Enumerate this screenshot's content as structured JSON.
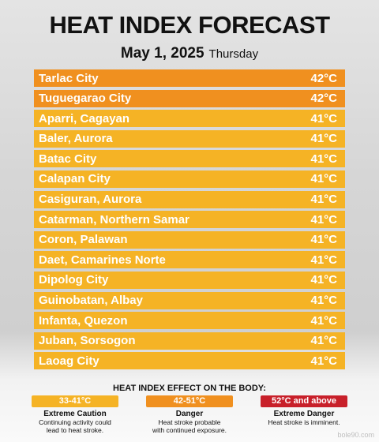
{
  "header": {
    "title": "HEAT INDEX FORECAST",
    "date": "May 1, 2025",
    "day": "Thursday"
  },
  "rows": [
    {
      "city": "Tarlac City",
      "temp": "42°C",
      "color": "#f0901f"
    },
    {
      "city": "Tuguegarao City",
      "temp": "42°C",
      "color": "#f0901f"
    },
    {
      "city": "Aparri, Cagayan",
      "temp": "41°C",
      "color": "#f5b325"
    },
    {
      "city": "Baler, Aurora",
      "temp": "41°C",
      "color": "#f5b325"
    },
    {
      "city": "Batac City",
      "temp": "41°C",
      "color": "#f5b325"
    },
    {
      "city": "Calapan City",
      "temp": "41°C",
      "color": "#f5b325"
    },
    {
      "city": "Casiguran, Aurora",
      "temp": "41°C",
      "color": "#f5b325"
    },
    {
      "city": "Catarman, Northern Samar",
      "temp": "41°C",
      "color": "#f5b325"
    },
    {
      "city": "Coron, Palawan",
      "temp": "41°C",
      "color": "#f5b325"
    },
    {
      "city": "Daet, Camarines Norte",
      "temp": "41°C",
      "color": "#f5b325"
    },
    {
      "city": "Dipolog City",
      "temp": "41°C",
      "color": "#f5b325"
    },
    {
      "city": "Guinobatan, Albay",
      "temp": "41°C",
      "color": "#f5b325"
    },
    {
      "city": "Infanta, Quezon",
      "temp": "41°C",
      "color": "#f5b325"
    },
    {
      "city": "Juban, Sorsogon",
      "temp": "41°C",
      "color": "#f5b325"
    },
    {
      "city": "Laoag City",
      "temp": "41°C",
      "color": "#f5b325"
    }
  ],
  "legend": {
    "title": "HEAT INDEX EFFECT ON THE BODY:",
    "items": [
      {
        "range": "33-41°C",
        "label": "Extreme Caution",
        "description": [
          "Continuing activity could",
          "lead to heat stroke."
        ],
        "color": "#f5b325"
      },
      {
        "range": "42-51°C",
        "label": "Danger",
        "description": [
          "Heat stroke probable",
          "with continued exposure."
        ],
        "color": "#f0901f"
      },
      {
        "range": "52°C and above",
        "label": "Extreme Danger",
        "description": [
          "Heat stroke is imminent."
        ],
        "color": "#c8202a"
      }
    ]
  },
  "watermark": "bole90.com"
}
